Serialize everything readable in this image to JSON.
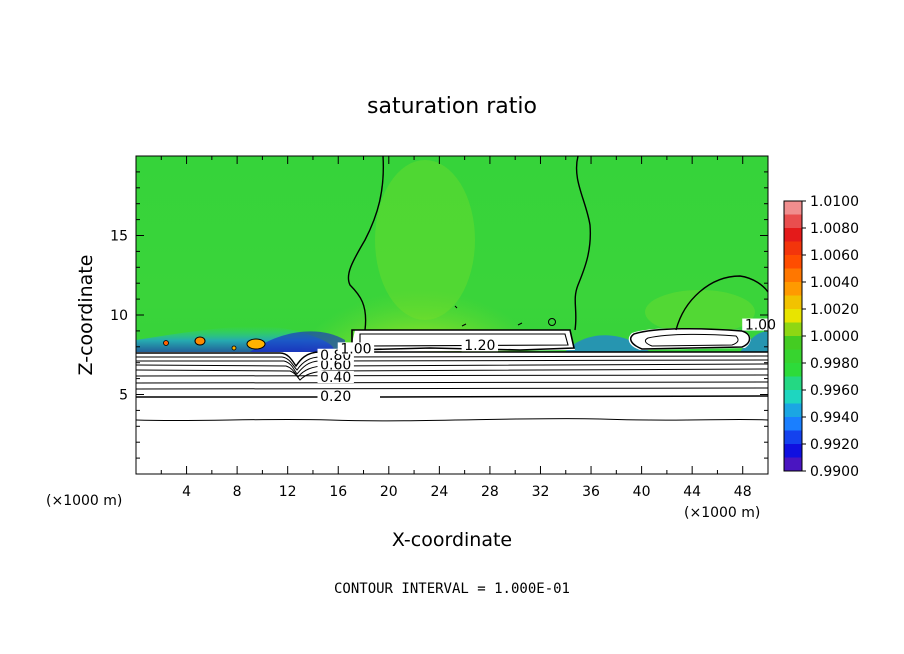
{
  "chart_data": {
    "type": "heatmap",
    "title": "saturation ratio",
    "xlabel": "X-coordinate",
    "ylabel": "Z-coordinate",
    "x_scale_left": "(×1000 m)",
    "x_scale_right": "(×1000 m)",
    "xlim": [
      0,
      50
    ],
    "ylim": [
      0,
      20
    ],
    "xticks": [
      "4",
      "8",
      "12",
      "16",
      "20",
      "24",
      "28",
      "32",
      "36",
      "40",
      "44",
      "48"
    ],
    "xtick_values": [
      4,
      8,
      12,
      16,
      20,
      24,
      28,
      32,
      36,
      40,
      44,
      48
    ],
    "yticks": [
      "5",
      "10",
      "15"
    ],
    "ytick_values": [
      5,
      10,
      15
    ],
    "contour_interval": "CONTOUR INTERVAL = 1.000E-01",
    "contour_labels": [
      {
        "text": "0.20",
        "x": 15.8,
        "z": 4.9
      },
      {
        "text": "0.40",
        "x": 15.8,
        "z": 6.1
      },
      {
        "text": "0.60",
        "x": 15.8,
        "z": 6.9
      },
      {
        "text": "0.80",
        "x": 15.8,
        "z": 7.5
      },
      {
        "text": "1.00",
        "x": 17.4,
        "z": 7.9
      },
      {
        "text": "1.20",
        "x": 27.2,
        "z": 8.1
      },
      {
        "text": "1.00",
        "x": 49.4,
        "z": 9.4
      }
    ],
    "colorbar": {
      "labels": [
        "1.0100",
        "1.0080",
        "1.0060",
        "1.0040",
        "1.0020",
        "1.0000",
        "0.9980",
        "0.9960",
        "0.9940",
        "0.9920",
        "0.9900"
      ],
      "colors": [
        "#f08e8e",
        "#e41a1a",
        "#ff4d00",
        "#ff9a00",
        "#e8e400",
        "#44cc22",
        "#2ddb3a",
        "#1ed6c0",
        "#1a7fff",
        "#1010e0",
        "#7a1aa8"
      ]
    },
    "background_color": "#3cd13a",
    "grid": false
  }
}
